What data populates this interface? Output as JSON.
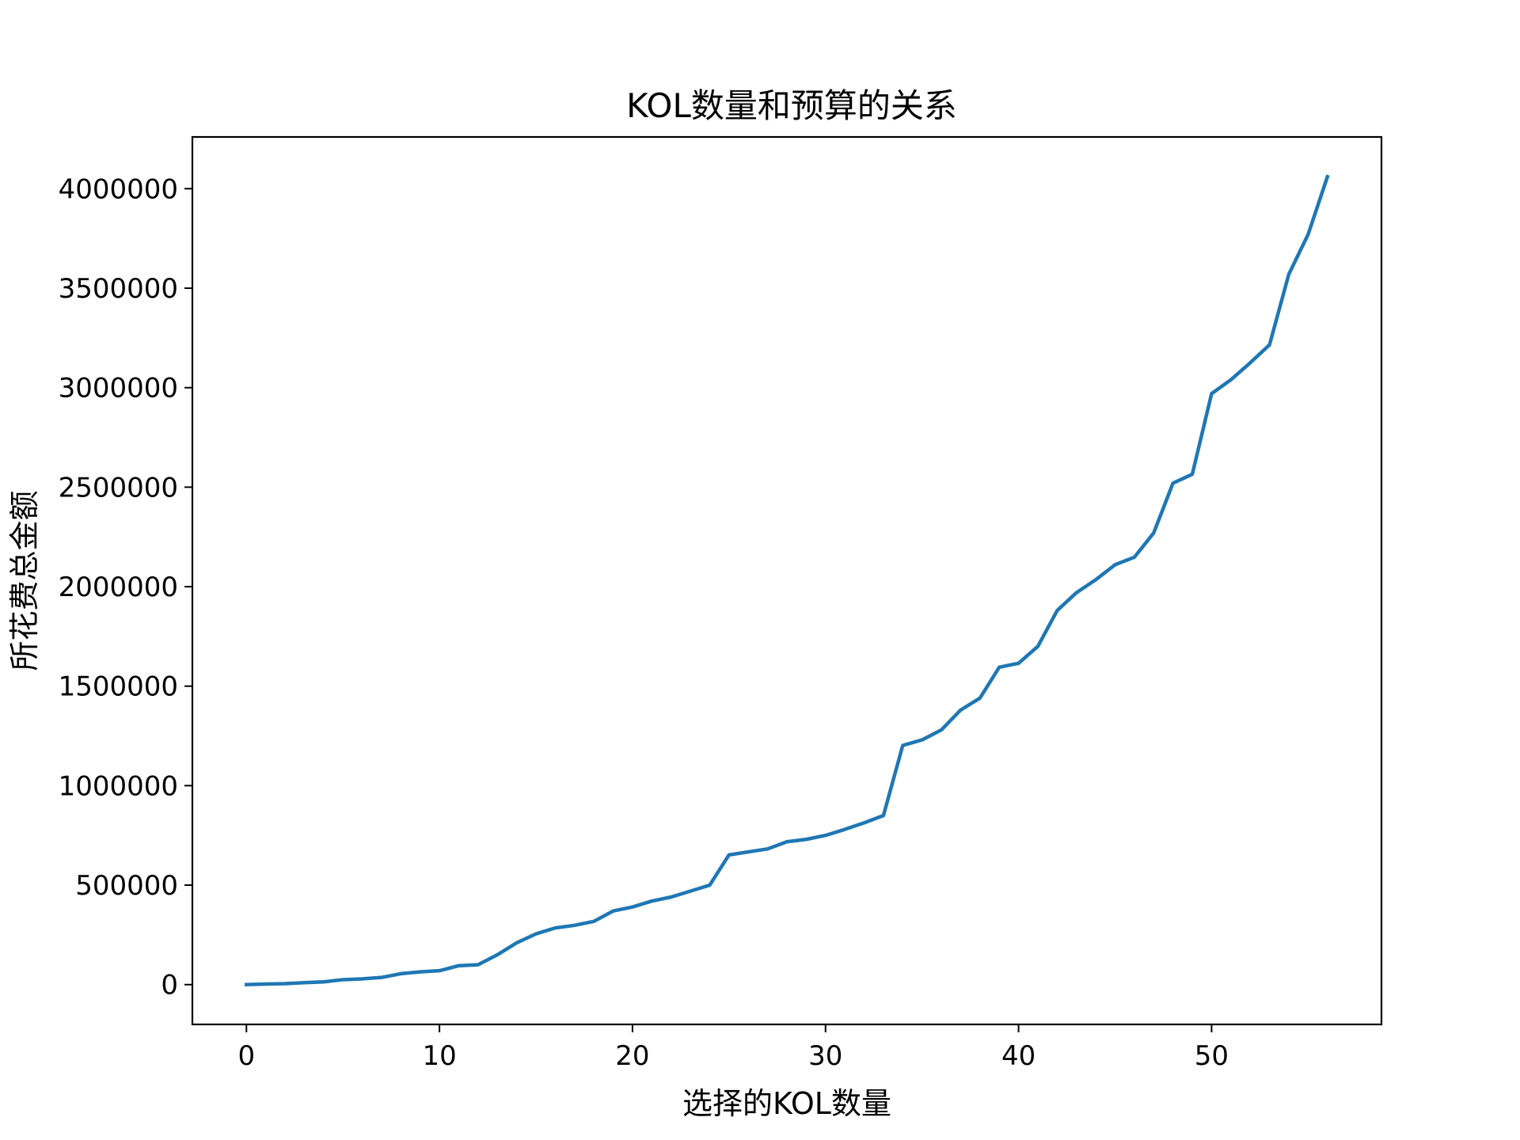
{
  "chart_data": {
    "type": "line",
    "title": "KOL数量和预算的关系",
    "xlabel": "选择的KOL数量",
    "ylabel": "所花费总金额",
    "xlim": [
      -2.8,
      58.8
    ],
    "ylim": [
      -200000,
      4260000
    ],
    "xticks": [
      0,
      10,
      20,
      30,
      40,
      50
    ],
    "yticks": [
      0,
      500000,
      1000000,
      1500000,
      2000000,
      2500000,
      3000000,
      3500000,
      4000000
    ],
    "grid": false,
    "line_color": "#1f77b4",
    "series": [
      {
        "x": [
          0,
          1,
          2,
          3,
          4,
          5,
          6,
          7,
          8,
          9,
          10,
          11,
          12,
          13,
          14,
          15,
          16,
          17,
          18,
          19,
          20,
          21,
          22,
          23,
          24,
          25,
          26,
          27,
          28,
          29,
          30,
          31,
          32,
          33,
          34,
          35,
          36,
          37,
          38,
          39,
          40,
          41,
          42,
          43,
          44,
          45,
          46,
          47,
          48,
          49,
          50,
          51,
          52,
          53,
          54,
          55,
          56
        ],
        "values": [
          0,
          3000,
          5000,
          10000,
          14000,
          25000,
          29000,
          36000,
          55000,
          64000,
          70000,
          95000,
          100000,
          150000,
          210000,
          255000,
          285000,
          298000,
          318000,
          370000,
          390000,
          420000,
          440000,
          470000,
          500000,
          652000,
          667000,
          682000,
          718000,
          730000,
          750000,
          780000,
          813000,
          850000,
          1202000,
          1230000,
          1280000,
          1380000,
          1440000,
          1595000,
          1615000,
          1700000,
          1880000,
          1970000,
          2035000,
          2110000,
          2148000,
          2270000,
          2520000,
          2565000,
          2970000,
          3040000,
          3125000,
          3215000,
          3570000,
          3770000,
          4060000
        ]
      }
    ]
  }
}
